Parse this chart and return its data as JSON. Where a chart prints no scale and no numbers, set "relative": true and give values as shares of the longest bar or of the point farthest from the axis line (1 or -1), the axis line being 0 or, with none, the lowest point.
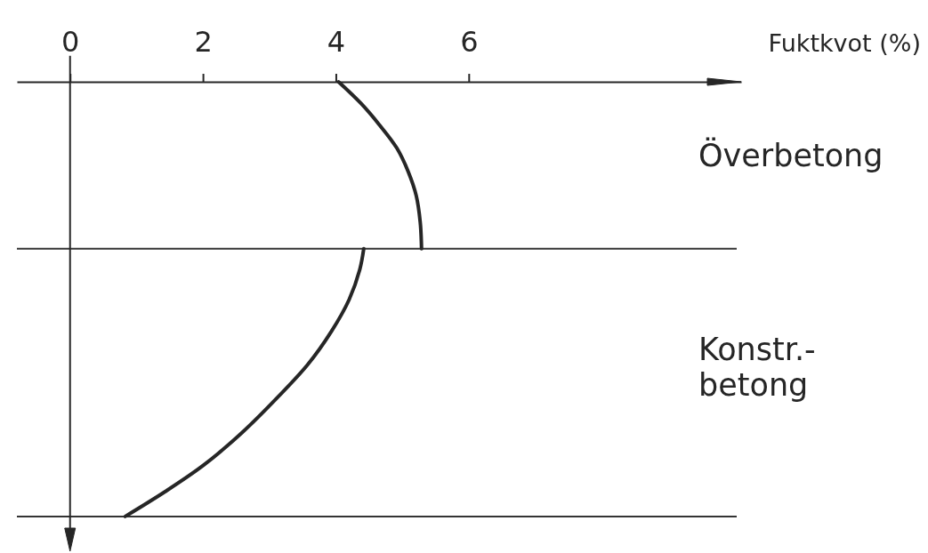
{
  "chart_data": {
    "type": "line",
    "xlabel": "Fuktkvot (%)",
    "xlim": [
      -0.8,
      10.1
    ],
    "xticks": [
      0,
      2,
      4,
      6
    ],
    "relative": true,
    "series": [
      {
        "color": "#262626",
        "x": [
          4.04,
          4.38,
          4.65,
          4.92,
          5.09,
          5.21,
          5.27,
          5.29
        ],
        "values": [
          0,
          -0.05,
          -0.098,
          -0.153,
          -0.207,
          -0.262,
          -0.323,
          -0.384
        ]
      },
      {
        "color": "#262626",
        "x": [
          4.42,
          4.36,
          4.2,
          3.93,
          3.58,
          3.13,
          2.59,
          2.01,
          1.43,
          0.83
        ],
        "values": [
          -0.384,
          -0.432,
          -0.501,
          -0.575,
          -0.65,
          -0.725,
          -0.807,
          -0.882,
          -0.943,
          -1
        ]
      }
    ],
    "ref_lines": [
      {
        "axis": "y",
        "value": -0.384,
        "color": "#333333"
      },
      {
        "axis": "y",
        "value": -1,
        "color": "#333333"
      }
    ],
    "annotations": [
      "Överbetong",
      "Konstr.-betong"
    ]
  }
}
